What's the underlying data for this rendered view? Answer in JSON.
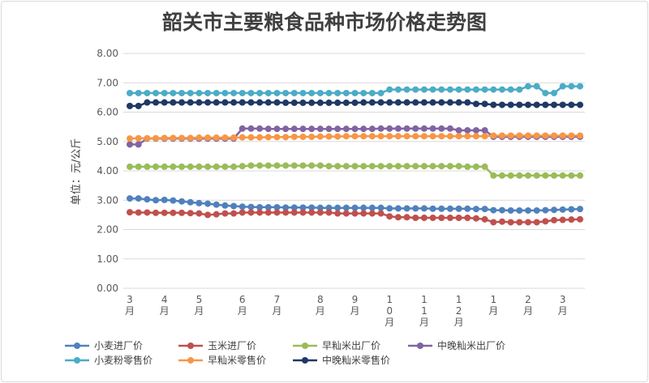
{
  "chart_data": {
    "type": "line",
    "title": "韶关市主要粮食品种市场价格走势图",
    "ylabel": "单位：元/公斤",
    "xlabel": "",
    "ylim": [
      0,
      8
    ],
    "yticks": [
      "0.00",
      "1.00",
      "2.00",
      "3.00",
      "4.00",
      "5.00",
      "6.00",
      "7.00",
      "8.00"
    ],
    "grid": true,
    "legend_position": "bottom",
    "x_ticks": [
      {
        "index": 0,
        "label": [
          "3",
          "月"
        ]
      },
      {
        "index": 4,
        "label": [
          "4",
          "月"
        ]
      },
      {
        "index": 8,
        "label": [
          "5",
          "月"
        ]
      },
      {
        "index": 13,
        "label": [
          "6",
          "月"
        ]
      },
      {
        "index": 17,
        "label": [
          "7",
          "月"
        ]
      },
      {
        "index": 22,
        "label": [
          "8",
          "月"
        ]
      },
      {
        "index": 26,
        "label": [
          "9",
          "月"
        ]
      },
      {
        "index": 30,
        "label": [
          "1",
          "0",
          "月"
        ]
      },
      {
        "index": 34,
        "label": [
          "1",
          "1",
          "月"
        ]
      },
      {
        "index": 38,
        "label": [
          "1",
          "2",
          "月"
        ]
      },
      {
        "index": 42,
        "label": [
          "1",
          "月"
        ]
      },
      {
        "index": 46,
        "label": [
          "2",
          "月"
        ]
      },
      {
        "index": 50,
        "label": [
          "3",
          "月"
        ]
      }
    ],
    "series": [
      {
        "name": "小麦进厂价",
        "color": "#4f81bd",
        "values": [
          3.06,
          3.06,
          3.03,
          3.0,
          3.01,
          2.99,
          2.96,
          2.93,
          2.9,
          2.88,
          2.85,
          2.82,
          2.8,
          2.78,
          2.77,
          2.76,
          2.76,
          2.76,
          2.75,
          2.75,
          2.75,
          2.75,
          2.74,
          2.74,
          2.74,
          2.74,
          2.74,
          2.74,
          2.74,
          2.74,
          2.72,
          2.72,
          2.72,
          2.72,
          2.72,
          2.71,
          2.71,
          2.71,
          2.71,
          2.71,
          2.7,
          2.7,
          2.66,
          2.66,
          2.65,
          2.65,
          2.65,
          2.65,
          2.66,
          2.67,
          2.68,
          2.69,
          2.7
        ]
      },
      {
        "name": "玉米进厂价",
        "color": "#c0504d",
        "values": [
          2.59,
          2.58,
          2.58,
          2.57,
          2.57,
          2.57,
          2.57,
          2.56,
          2.55,
          2.5,
          2.52,
          2.55,
          2.55,
          2.58,
          2.58,
          2.58,
          2.58,
          2.58,
          2.58,
          2.58,
          2.58,
          2.58,
          2.58,
          2.58,
          2.55,
          2.55,
          2.55,
          2.55,
          2.55,
          2.55,
          2.45,
          2.42,
          2.42,
          2.4,
          2.4,
          2.4,
          2.4,
          2.4,
          2.4,
          2.4,
          2.38,
          2.35,
          2.25,
          2.27,
          2.25,
          2.25,
          2.25,
          2.25,
          2.28,
          2.32,
          2.33,
          2.34,
          2.35
        ]
      },
      {
        "name": "早籼米出厂价",
        "color": "#9bbb59",
        "values": [
          4.14,
          4.14,
          4.14,
          4.14,
          4.14,
          4.14,
          4.14,
          4.14,
          4.14,
          4.14,
          4.14,
          4.14,
          4.14,
          4.16,
          4.18,
          4.18,
          4.18,
          4.18,
          4.18,
          4.18,
          4.18,
          4.18,
          4.18,
          4.16,
          4.16,
          4.16,
          4.16,
          4.16,
          4.16,
          4.16,
          4.16,
          4.16,
          4.16,
          4.16,
          4.16,
          4.16,
          4.16,
          4.16,
          4.16,
          4.14,
          4.14,
          4.14,
          3.84,
          3.84,
          3.84,
          3.84,
          3.84,
          3.84,
          3.84,
          3.84,
          3.84,
          3.84,
          3.84
        ]
      },
      {
        "name": "中晚籼米出厂价",
        "color": "#8064a2",
        "values": [
          4.9,
          4.9,
          5.1,
          5.1,
          5.1,
          5.1,
          5.1,
          5.1,
          5.1,
          5.1,
          5.1,
          5.1,
          5.1,
          5.44,
          5.44,
          5.44,
          5.43,
          5.43,
          5.43,
          5.43,
          5.43,
          5.43,
          5.43,
          5.43,
          5.43,
          5.43,
          5.43,
          5.43,
          5.43,
          5.44,
          5.44,
          5.44,
          5.44,
          5.44,
          5.44,
          5.44,
          5.44,
          5.44,
          5.38,
          5.38,
          5.38,
          5.38,
          5.16,
          5.16,
          5.16,
          5.16,
          5.16,
          5.16,
          5.16,
          5.16,
          5.16,
          5.16,
          5.16
        ]
      },
      {
        "name": "小麦粉零售价",
        "color": "#4bacc6",
        "values": [
          6.65,
          6.65,
          6.65,
          6.65,
          6.65,
          6.65,
          6.65,
          6.65,
          6.65,
          6.65,
          6.65,
          6.65,
          6.65,
          6.65,
          6.65,
          6.65,
          6.65,
          6.65,
          6.65,
          6.65,
          6.65,
          6.65,
          6.65,
          6.65,
          6.65,
          6.65,
          6.65,
          6.65,
          6.65,
          6.65,
          6.77,
          6.77,
          6.77,
          6.77,
          6.77,
          6.77,
          6.77,
          6.77,
          6.77,
          6.77,
          6.77,
          6.77,
          6.77,
          6.77,
          6.77,
          6.77,
          6.88,
          6.88,
          6.65,
          6.65,
          6.88,
          6.88,
          6.88
        ]
      },
      {
        "name": "早籼米零售价",
        "color": "#f79646",
        "values": [
          5.1,
          5.11,
          5.11,
          5.11,
          5.12,
          5.12,
          5.12,
          5.12,
          5.13,
          5.13,
          5.13,
          5.13,
          5.13,
          5.14,
          5.14,
          5.14,
          5.15,
          5.15,
          5.15,
          5.16,
          5.16,
          5.16,
          5.17,
          5.17,
          5.17,
          5.18,
          5.18,
          5.18,
          5.18,
          5.18,
          5.18,
          5.18,
          5.18,
          5.18,
          5.18,
          5.18,
          5.18,
          5.18,
          5.18,
          5.18,
          5.18,
          5.18,
          5.2,
          5.2,
          5.2,
          5.2,
          5.2,
          5.2,
          5.2,
          5.2,
          5.2,
          5.2,
          5.2
        ]
      },
      {
        "name": "中晚籼米零售价",
        "color": "#1f3864",
        "values": [
          6.21,
          6.21,
          6.33,
          6.33,
          6.33,
          6.33,
          6.33,
          6.33,
          6.33,
          6.33,
          6.33,
          6.33,
          6.33,
          6.33,
          6.33,
          6.33,
          6.33,
          6.33,
          6.32,
          6.32,
          6.32,
          6.32,
          6.32,
          6.32,
          6.32,
          6.32,
          6.32,
          6.33,
          6.33,
          6.33,
          6.33,
          6.33,
          6.33,
          6.33,
          6.33,
          6.33,
          6.33,
          6.33,
          6.33,
          6.33,
          6.28,
          6.28,
          6.25,
          6.25,
          6.25,
          6.25,
          6.25,
          6.25,
          6.25,
          6.25,
          6.25,
          6.25,
          6.25
        ]
      }
    ]
  }
}
